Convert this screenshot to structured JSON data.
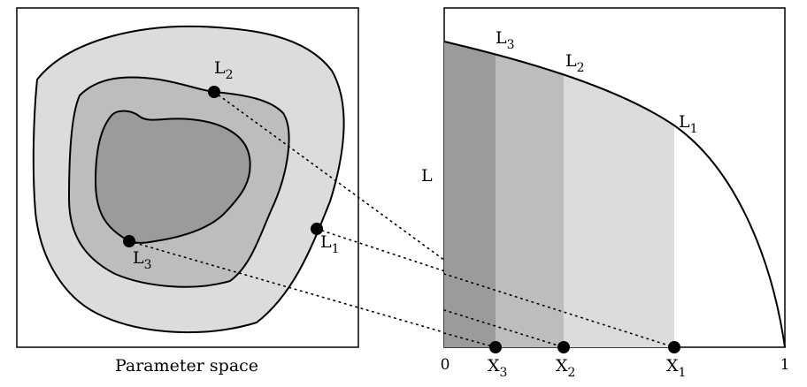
{
  "left_panel": {
    "caption": "Parameter space",
    "point_labels": {
      "L1": {
        "main": "L",
        "sub": "1"
      },
      "L2": {
        "main": "L",
        "sub": "2"
      },
      "L3": {
        "main": "L",
        "sub": "3"
      }
    },
    "region_colors": {
      "outer": "#dcdcdc",
      "middle": "#bdbdbd",
      "inner": "#9b9b9b"
    }
  },
  "right_panel": {
    "y_axis_label": "L",
    "x_tick_start": "0",
    "x_tick_end": "1",
    "curve_labels": {
      "L1": {
        "main": "L",
        "sub": "1"
      },
      "L2": {
        "main": "L",
        "sub": "2"
      },
      "L3": {
        "main": "L",
        "sub": "3"
      }
    },
    "x_marks": {
      "X1": {
        "main": "X",
        "sub": "1"
      },
      "X2": {
        "main": "X",
        "sub": "2"
      },
      "X3": {
        "main": "X",
        "sub": "3"
      }
    },
    "band_colors": {
      "b3": "#9b9b9b",
      "b2": "#bdbdbd",
      "b1": "#dcdcdc"
    }
  },
  "connector_style": "dotted"
}
